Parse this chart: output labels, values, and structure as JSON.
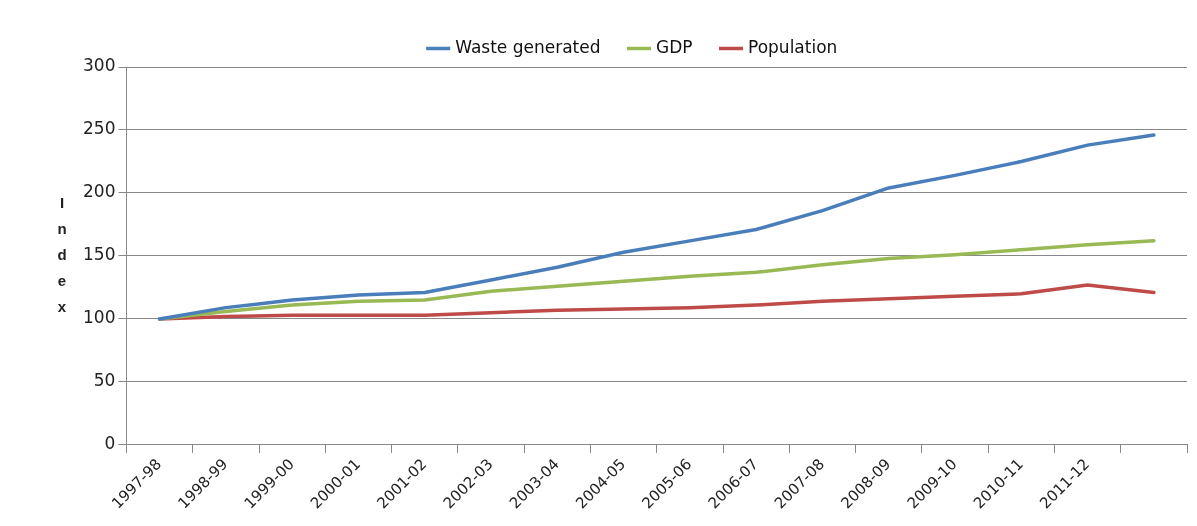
{
  "chart_data": {
    "type": "line",
    "ylabel": "Index",
    "categories": [
      "1997-98",
      "1998-99",
      "1999-00",
      "2000-01",
      "2001-02",
      "2002-03",
      "2003-04",
      "2004-05",
      "2005-06",
      "2006-07",
      "2007-08",
      "2008-09",
      "2009-10",
      "2010-11",
      "2011-12",
      null
    ],
    "series": [
      {
        "name": "Waste generated",
        "color": "#4a7ebb",
        "values": [
          100,
          109,
          115,
          119,
          121,
          131,
          141,
          153,
          162,
          171,
          186,
          204,
          214,
          225,
          238,
          246
        ]
      },
      {
        "name": "GDP",
        "color": "#98b954",
        "values": [
          100,
          106,
          111,
          114,
          115,
          122,
          126,
          130,
          134,
          137,
          143,
          148,
          151,
          155,
          159,
          162
        ]
      },
      {
        "name": "Population",
        "color": "#be4b48",
        "values": [
          100,
          102,
          103,
          103,
          103,
          105,
          107,
          108,
          109,
          111,
          114,
          116,
          118,
          120,
          127,
          121
        ]
      }
    ],
    "ylim": [
      0,
      300
    ],
    "yticks": [
      0,
      50,
      100,
      150,
      200,
      250,
      300
    ],
    "grid": "y",
    "legend": "top",
    "marker": "none",
    "line_style": "solid"
  }
}
